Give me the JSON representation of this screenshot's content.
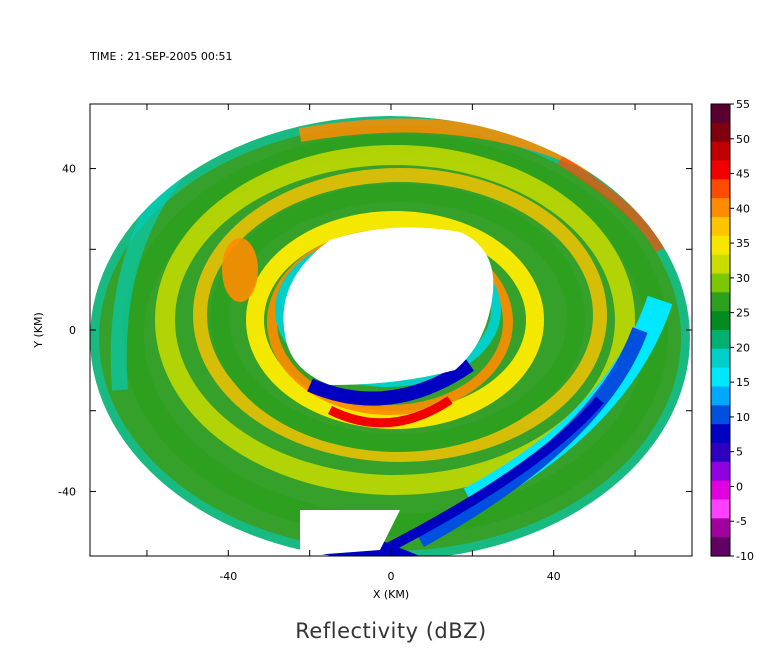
{
  "time_label": "TIME : 21-SEP-2005 00:51",
  "figure_title": "Reflectivity (dBZ)",
  "chart_data": {
    "type": "heatmap",
    "title": "Reflectivity (dBZ)",
    "xlabel": "X (KM)",
    "ylabel": "Y (KM)",
    "xlim": [
      -74,
      74
    ],
    "ylim": [
      -56,
      56
    ],
    "x_ticks": [
      -40,
      0,
      40
    ],
    "y_ticks": [
      -40,
      0,
      40
    ],
    "colorbar": {
      "unit": "dBZ",
      "min": -10,
      "max": 55,
      "ticks": [
        "55",
        "50",
        "45",
        "40",
        "35",
        "30",
        "25",
        "20",
        "15",
        "10",
        "5",
        "0",
        "-5",
        "-10"
      ],
      "colors": [
        "#5a0030",
        "#800010",
        "#c00000",
        "#f00000",
        "#ff4a00",
        "#ff8c00",
        "#ffc400",
        "#f4e800",
        "#c8dc00",
        "#7cc800",
        "#2ea020",
        "#008c20",
        "#00b070",
        "#00d0c8",
        "#00e8ff",
        "#00a8ff",
        "#0050e0",
        "#0000c0",
        "#3000c0",
        "#9000e0",
        "#e000e0",
        "#ff40ff",
        "#a000a0",
        "#600060"
      ]
    }
  }
}
